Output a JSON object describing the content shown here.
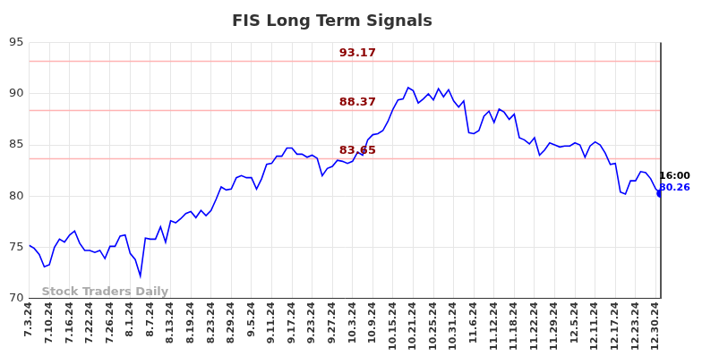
{
  "chart_data": {
    "type": "line",
    "title": "FIS Long Term Signals",
    "categories": [
      "7.3.24",
      null,
      null,
      null,
      "7.10.24",
      null,
      null,
      null,
      "7.16.24",
      null,
      null,
      null,
      "7.22.24",
      null,
      null,
      null,
      "7.26.24",
      null,
      null,
      null,
      "8.1.24",
      null,
      null,
      null,
      "8.7.24",
      null,
      null,
      null,
      "8.13.24",
      null,
      null,
      null,
      "8.19.24",
      null,
      null,
      null,
      "8.23.24",
      null,
      null,
      null,
      "8.29.24",
      null,
      null,
      null,
      "9.5.24",
      null,
      null,
      null,
      "9.11.24",
      null,
      null,
      null,
      "9.17.24",
      null,
      null,
      null,
      "9.23.24",
      null,
      null,
      null,
      "9.27.24",
      null,
      null,
      null,
      "10.3.24",
      null,
      null,
      null,
      "10.9.24",
      null,
      null,
      null,
      "10.15.24",
      null,
      null,
      null,
      "10.21.24",
      null,
      null,
      null,
      "10.25.24",
      null,
      null,
      null,
      "10.31.24",
      null,
      null,
      null,
      "11.6.24",
      null,
      null,
      null,
      "11.12.24",
      null,
      null,
      null,
      "11.18.24",
      null,
      null,
      null,
      "11.22.24",
      null,
      null,
      null,
      "11.29.24",
      null,
      null,
      null,
      "12.5.24",
      null,
      null,
      null,
      "12.11.24",
      null,
      null,
      null,
      "12.17.24",
      null,
      null,
      null,
      "12.23.24",
      null,
      null,
      null,
      "12.30.24",
      null
    ],
    "values": [
      75.2,
      74.9,
      74.3,
      73.1,
      73.3,
      75.0,
      75.8,
      75.5,
      76.2,
      76.6,
      75.4,
      74.7,
      74.7,
      74.5,
      74.7,
      73.9,
      75.1,
      75.1,
      76.1,
      76.2,
      74.4,
      73.8,
      72.2,
      75.9,
      75.8,
      75.8,
      77.0,
      75.5,
      77.6,
      77.4,
      77.8,
      78.3,
      78.5,
      77.9,
      78.6,
      78.1,
      78.6,
      79.7,
      80.9,
      80.6,
      80.7,
      81.8,
      82.0,
      81.8,
      81.8,
      80.7,
      81.7,
      83.1,
      83.2,
      83.9,
      83.9,
      84.7,
      84.7,
      84.1,
      84.1,
      83.8,
      84.0,
      83.7,
      82.0,
      82.7,
      82.9,
      83.5,
      83.4,
      83.2,
      83.4,
      84.3,
      84.0,
      85.5,
      86.0,
      86.1,
      86.4,
      87.3,
      88.5,
      89.4,
      89.5,
      90.6,
      90.3,
      89.1,
      89.5,
      90.0,
      89.4,
      90.5,
      89.7,
      90.4,
      89.3,
      88.7,
      89.3,
      86.2,
      86.1,
      86.4,
      87.8,
      88.3,
      87.2,
      88.5,
      88.2,
      87.5,
      88.0,
      85.7,
      85.5,
      85.1,
      85.7,
      84.0,
      84.5,
      85.2,
      85.0,
      84.8,
      84.9,
      84.9,
      85.2,
      85.0,
      83.8,
      84.9,
      85.3,
      85.0,
      84.2,
      83.1,
      83.2,
      80.4,
      80.2,
      81.5,
      81.5,
      82.4,
      82.3,
      81.7,
      80.7,
      80.26
    ],
    "color": "#0000ff",
    "ylim": [
      70,
      95
    ],
    "yticks": [
      70,
      75,
      80,
      85,
      90,
      95
    ],
    "grid": true,
    "horizontal_lines": [
      93.17,
      88.37,
      83.65
    ],
    "last_label": "16:00",
    "watermark": "Stock Traders Daily"
  }
}
